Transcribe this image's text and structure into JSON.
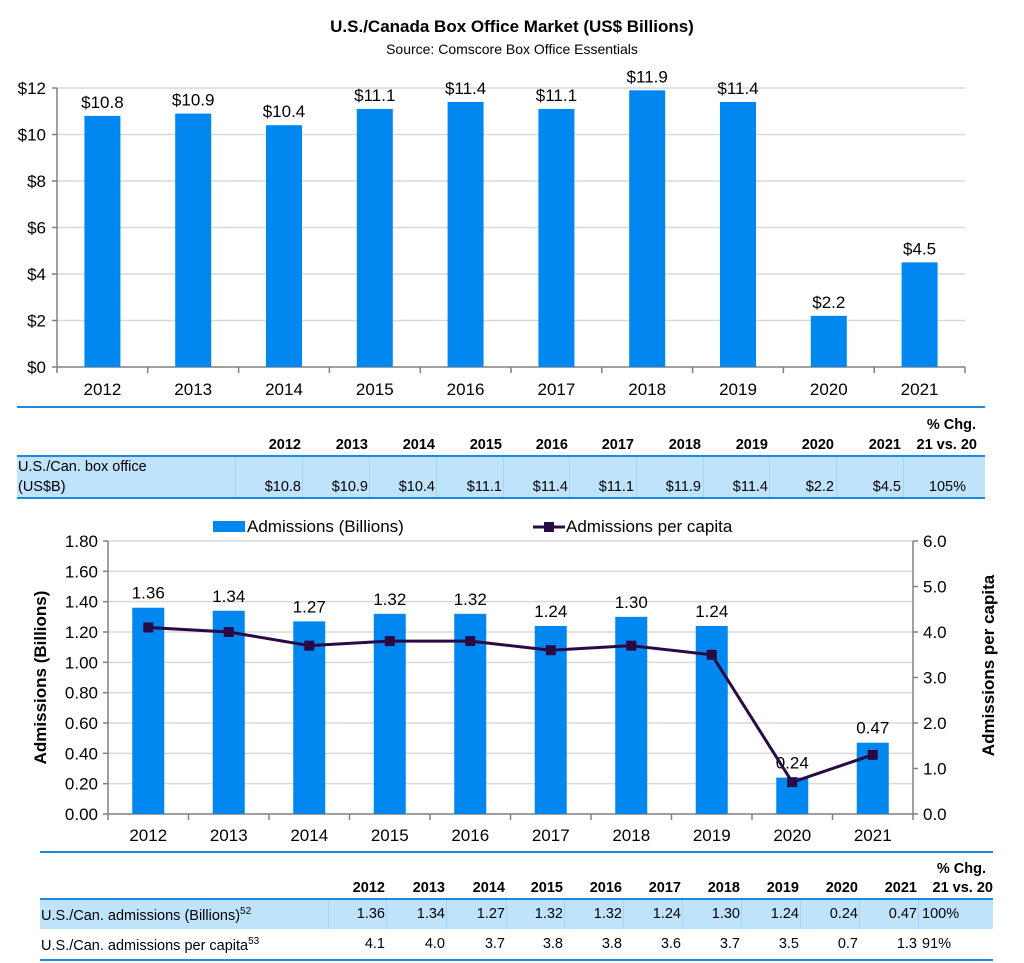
{
  "chart_data": [
    {
      "type": "bar",
      "title": "U.S./Canada Box Office Market (US$ Billions)",
      "subtitle": "Source: Comscore Box Office Essentials",
      "categories": [
        "2012",
        "2013",
        "2014",
        "2015",
        "2016",
        "2017",
        "2018",
        "2019",
        "2020",
        "2021"
      ],
      "values": [
        10.8,
        10.9,
        10.4,
        11.1,
        11.4,
        11.1,
        11.9,
        11.4,
        2.2,
        4.5
      ],
      "data_labels": [
        "$10.8",
        "$10.9",
        "$10.4",
        "$11.1",
        "$11.4",
        "$11.1",
        "$11.9",
        "$11.4",
        "$2.2",
        "$4.5"
      ],
      "ylim": [
        0,
        12
      ],
      "yticks": [
        0,
        2,
        4,
        6,
        8,
        10,
        12
      ],
      "ytick_labels": [
        "$0",
        "$2",
        "$4",
        "$6",
        "$8",
        "$10",
        "$12"
      ],
      "xlabel": "",
      "ylabel": "",
      "grid": true,
      "bar_color": "#0088F0"
    },
    {
      "type": "bar+line",
      "categories": [
        "2012",
        "2013",
        "2014",
        "2015",
        "2016",
        "2017",
        "2018",
        "2019",
        "2020",
        "2021"
      ],
      "series": [
        {
          "name": "Admissions (Billions)",
          "type": "bar",
          "axis": "left",
          "values": [
            1.36,
            1.34,
            1.27,
            1.32,
            1.32,
            1.24,
            1.3,
            1.24,
            0.24,
            0.47
          ],
          "data_labels": [
            "1.36",
            "1.34",
            "1.27",
            "1.32",
            "1.32",
            "1.24",
            "1.30",
            "1.24",
            "0.24",
            "0.47"
          ],
          "color": "#0088F0"
        },
        {
          "name": "Admissions per capita",
          "type": "line",
          "axis": "right",
          "values": [
            4.1,
            4.0,
            3.7,
            3.8,
            3.8,
            3.6,
            3.7,
            3.5,
            0.7,
            1.3
          ],
          "color": "#2A0A45",
          "marker": "square"
        }
      ],
      "ylabel_left": "Admissions (Billions)",
      "ylabel_right": "Admissions per capita",
      "ylim_left": [
        0,
        1.8
      ],
      "yticks_left": [
        "0.00",
        "0.20",
        "0.40",
        "0.60",
        "0.80",
        "1.00",
        "1.20",
        "1.40",
        "1.60",
        "1.80"
      ],
      "ylim_right": [
        0,
        6
      ],
      "yticks_right": [
        "0.0",
        "1.0",
        "2.0",
        "3.0",
        "4.0",
        "5.0",
        "6.0"
      ],
      "legend": "top",
      "grid": true
    }
  ],
  "table1": {
    "headers": [
      "2012",
      "2013",
      "2014",
      "2015",
      "2016",
      "2017",
      "2018",
      "2019",
      "2020",
      "2021"
    ],
    "chg_header_line1": "% Chg.",
    "chg_header_line2": "21 vs. 20",
    "row_label_line1": "U.S./Can. box office",
    "row_label_line2": "(US$B)",
    "values": [
      "$10.8",
      "$10.9",
      "$10.4",
      "$11.1",
      "$11.4",
      "$11.1",
      "$11.9",
      "$11.4",
      "$2.2",
      "$4.5"
    ],
    "chg": "105%"
  },
  "table2": {
    "headers": [
      "2012",
      "2013",
      "2014",
      "2015",
      "2016",
      "2017",
      "2018",
      "2019",
      "2020",
      "2021"
    ],
    "chg_header_line1": "% Chg.",
    "chg_header_line2": "21 vs. 20",
    "rows": [
      {
        "label": "U.S./Can. admissions (Billions)",
        "footnote": "52",
        "values": [
          "1.36",
          "1.34",
          "1.27",
          "1.32",
          "1.32",
          "1.24",
          "1.30",
          "1.24",
          "0.24",
          "0.47"
        ],
        "chg": "100%"
      },
      {
        "label": "U.S./Can. admissions per capita",
        "footnote": "53",
        "values": [
          "4.1",
          "4.0",
          "3.7",
          "3.8",
          "3.8",
          "3.6",
          "3.7",
          "3.5",
          "0.7",
          "1.3"
        ],
        "chg": "91%"
      }
    ]
  },
  "colors": {
    "bar": "#0088F0",
    "line": "#2A0A45",
    "rule": "#1E88E5",
    "band": "#BEE3FA",
    "grid": "#D9D9D9",
    "axis": "#808080"
  }
}
